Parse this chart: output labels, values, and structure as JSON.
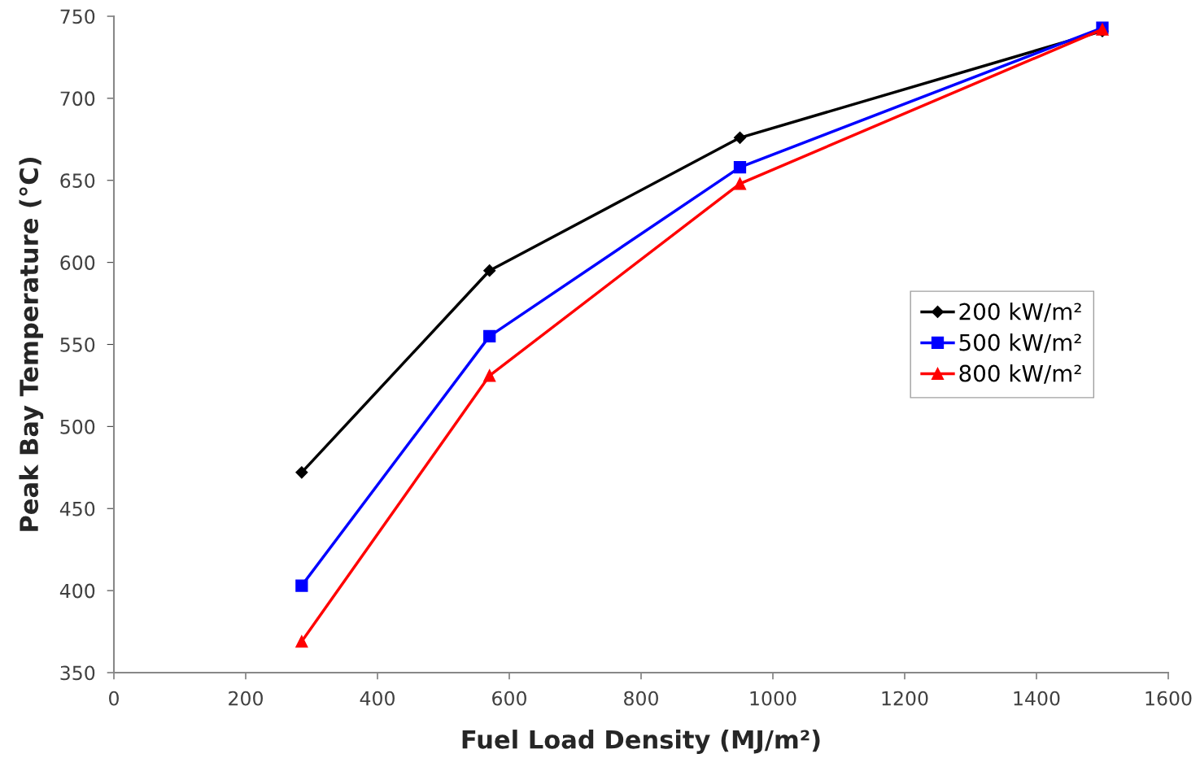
{
  "chart_data": {
    "type": "line",
    "xlabel": "Fuel Load Density (MJ/m²)",
    "ylabel": "Peak Bay Temperature (°C)",
    "x": [
      285,
      570,
      950,
      1500
    ],
    "series": [
      {
        "name": "200 kW/m²",
        "color": "#000000",
        "marker": "diamond",
        "values": [
          472,
          595,
          676,
          741
        ]
      },
      {
        "name": "500 kW/m²",
        "color": "#0000ff",
        "marker": "square",
        "values": [
          403,
          555,
          658,
          743
        ]
      },
      {
        "name": "800 kW/m²",
        "color": "#ff0000",
        "marker": "triangle",
        "values": [
          369,
          531,
          648,
          742
        ]
      }
    ],
    "xlim": [
      0,
      1600
    ],
    "xticks": [
      0,
      200,
      400,
      600,
      800,
      1000,
      1200,
      1400,
      1600
    ],
    "ylim": [
      350,
      750
    ],
    "yticks": [
      350,
      400,
      450,
      500,
      550,
      600,
      650,
      700,
      750
    ],
    "grid": false,
    "legend": "right",
    "line_style": "solid"
  }
}
